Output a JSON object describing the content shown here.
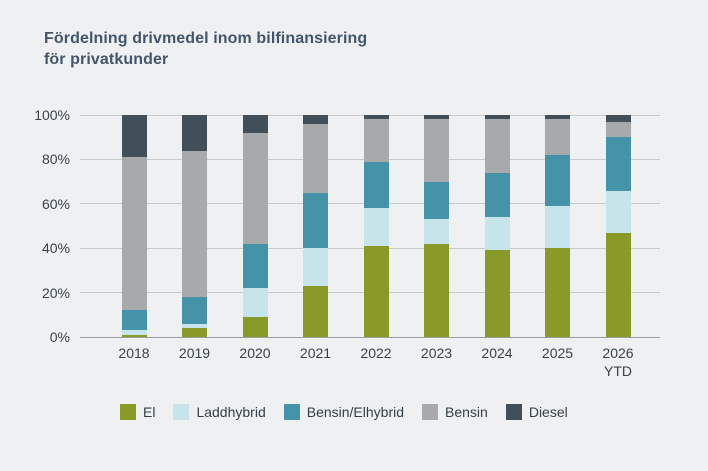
{
  "title": "Fördelning drivmedel inom bilfinansiering\nför privatkunder",
  "colors": {
    "background": "#eef0f2",
    "title_text": "#44566b",
    "axis_text": "#39434b",
    "gridline": "#c8cacc",
    "axis_line": "#9a9ca0"
  },
  "chart_data": {
    "type": "bar",
    "stacked": true,
    "title": "Fördelning drivmedel inom bilfinansiering för privatkunder",
    "categories": [
      "2018",
      "2019",
      "2020",
      "2021",
      "2022",
      "2023",
      "2024",
      "2025",
      "2026\nYTD"
    ],
    "series": [
      {
        "name": "El",
        "color": "#8a9a28",
        "values": [
          1,
          4,
          9,
          23,
          41,
          42,
          39,
          40,
          47
        ]
      },
      {
        "name": "Laddhybrid",
        "color": "#c6e4ea",
        "values": [
          2,
          2,
          13,
          17,
          17,
          11,
          15,
          19,
          19
        ]
      },
      {
        "name": "Bensin/Elhybrid",
        "color": "#4493a8",
        "values": [
          9,
          12,
          20,
          25,
          21,
          17,
          20,
          23,
          24
        ]
      },
      {
        "name": "Bensin",
        "color": "#a7a9ab",
        "values": [
          69,
          66,
          50,
          31,
          19,
          28,
          24,
          16,
          7
        ]
      },
      {
        "name": "Diesel",
        "color": "#424e58",
        "values": [
          19,
          16,
          8,
          4,
          2,
          2,
          2,
          2,
          3
        ]
      }
    ],
    "xlabel": "",
    "ylabel": "",
    "y_ticks": [
      "0%",
      "20%",
      "40%",
      "60%",
      "80%",
      "100%"
    ],
    "ylim": [
      0,
      100
    ],
    "grid": true,
    "legend_position": "bottom"
  }
}
